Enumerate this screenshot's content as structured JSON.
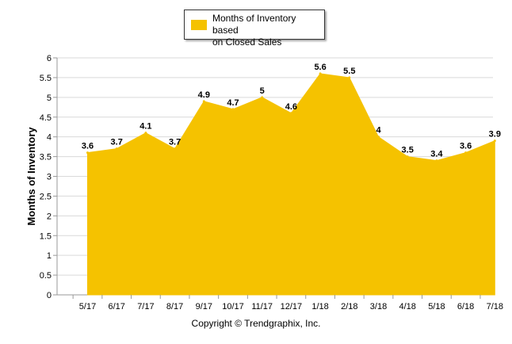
{
  "chart_data": {
    "type": "area",
    "title": "",
    "xlabel": "",
    "ylabel": "Months of Inventory",
    "categories": [
      "5/17",
      "6/17",
      "7/17",
      "8/17",
      "9/17",
      "10/17",
      "11/17",
      "12/17",
      "1/18",
      "2/18",
      "3/18",
      "4/18",
      "5/18",
      "6/18",
      "7/18"
    ],
    "series": [
      {
        "name": "Months of Inventory based on Closed Sales",
        "values": [
          3.6,
          3.7,
          4.1,
          3.7,
          4.9,
          4.7,
          5,
          4.6,
          5.6,
          5.5,
          4,
          3.5,
          3.4,
          3.6,
          3.9
        ],
        "data_labels": [
          "3.6",
          "3.7",
          "4.1",
          "3.7",
          "4.9",
          "4.7",
          "5",
          "4.6",
          "5.6",
          "5.5",
          "4",
          "3.5",
          "3.4",
          "3.6",
          "3.9"
        ],
        "color": "#F5C200"
      }
    ],
    "ylim": [
      0,
      6
    ],
    "yticks": [
      "0",
      "0.5",
      "1",
      "1.5",
      "2",
      "2.5",
      "3",
      "3.5",
      "4",
      "4.5",
      "5",
      "5.5",
      "6"
    ],
    "grid": true,
    "legend_position": "top-center"
  },
  "legend": {
    "label_line1": "Months of Inventory based",
    "label_line2": "on Closed Sales"
  },
  "footer": {
    "copyright": "Copyright © Trendgraphix, Inc."
  }
}
